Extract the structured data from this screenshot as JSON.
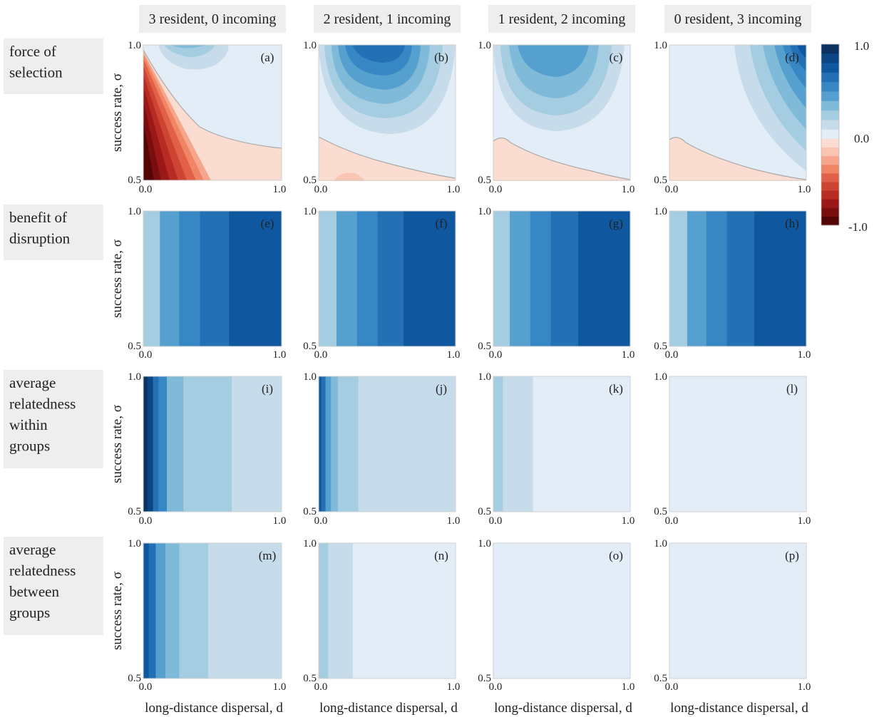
{
  "figure": {
    "columns": [
      "3 resident, 0 incoming",
      "2 resident, 1 incoming",
      "1 resident, 2 incoming",
      "0 resident, 3 incoming"
    ],
    "rows": [
      {
        "label": [
          "force of",
          "selection"
        ]
      },
      {
        "label": [
          "benefit of",
          "disruption"
        ]
      },
      {
        "label": [
          "average",
          "relatedness",
          "within",
          "groups"
        ]
      },
      {
        "label": [
          "average",
          "relatedness",
          "between",
          "groups"
        ]
      }
    ],
    "ylabel": "success rate, σ",
    "xlabel": "long-distance dispersal, d",
    "x_ticks": [
      "0.0",
      "1.0"
    ],
    "y_ticks": [
      "0.5",
      "1.0"
    ],
    "colorbar": {
      "ticks": [
        "1.0",
        "0.0",
        "-1.0"
      ]
    }
  },
  "colors": {
    "blues": [
      "#e3edf7",
      "#c7dceb",
      "#a5cde2",
      "#80bad9",
      "#56a0cf",
      "#3787c4",
      "#2370b4",
      "#0f58a0",
      "#0a4685",
      "#0b3260"
    ],
    "reds": [
      "#fbdcd0",
      "#f9c4b0",
      "#f6a68c",
      "#f08566",
      "#e06048",
      "#ce4433",
      "#b82b22",
      "#9b1818",
      "#7a0d0d",
      "#520606"
    ]
  },
  "chart_data": [
    {
      "panel": "(a)",
      "type": "heatmap",
      "row": "force of selection",
      "column": "3 resident, 0 incoming",
      "xlim": [
        0.0,
        1.0
      ],
      "ylim": [
        0.5,
        1.0
      ],
      "value_range": [
        -1.0,
        1.0
      ]
    },
    {
      "panel": "(b)",
      "type": "heatmap",
      "row": "force of selection",
      "column": "2 resident, 1 incoming",
      "xlim": [
        0.0,
        1.0
      ],
      "ylim": [
        0.5,
        1.0
      ],
      "value_range": [
        -1.0,
        1.0
      ]
    },
    {
      "panel": "(c)",
      "type": "heatmap",
      "row": "force of selection",
      "column": "1 resident, 2 incoming",
      "xlim": [
        0.0,
        1.0
      ],
      "ylim": [
        0.5,
        1.0
      ],
      "value_range": [
        -1.0,
        1.0
      ]
    },
    {
      "panel": "(d)",
      "type": "heatmap",
      "row": "force of selection",
      "column": "0 resident, 3 incoming",
      "xlim": [
        0.0,
        1.0
      ],
      "ylim": [
        0.5,
        1.0
      ],
      "value_range": [
        -1.0,
        1.0
      ]
    },
    {
      "panel": "(e)",
      "type": "heatmap",
      "row": "benefit of disruption",
      "column": "3 resident, 0 incoming",
      "xlim": [
        0.0,
        1.0
      ],
      "ylim": [
        0.5,
        1.0
      ],
      "bands": [
        {
          "x_from": 0.0,
          "x_to": 0.12,
          "level": 2
        },
        {
          "x_from": 0.12,
          "x_to": 0.26,
          "level": 4
        },
        {
          "x_from": 0.26,
          "x_to": 0.41,
          "level": 5
        },
        {
          "x_from": 0.41,
          "x_to": 0.62,
          "level": 6
        },
        {
          "x_from": 0.62,
          "x_to": 1.0,
          "level": 7
        }
      ]
    },
    {
      "panel": "(f)",
      "type": "heatmap",
      "row": "benefit of disruption",
      "column": "2 resident, 1 incoming",
      "xlim": [
        0.0,
        1.0
      ],
      "ylim": [
        0.5,
        1.0
      ],
      "bands": [
        {
          "x_from": 0.0,
          "x_to": 0.13,
          "level": 2
        },
        {
          "x_from": 0.13,
          "x_to": 0.28,
          "level": 4
        },
        {
          "x_from": 0.28,
          "x_to": 0.43,
          "level": 5
        },
        {
          "x_from": 0.43,
          "x_to": 0.62,
          "level": 6
        },
        {
          "x_from": 0.62,
          "x_to": 1.0,
          "level": 7
        }
      ]
    },
    {
      "panel": "(g)",
      "type": "heatmap",
      "row": "benefit of disruption",
      "column": "1 resident, 2 incoming",
      "xlim": [
        0.0,
        1.0
      ],
      "ylim": [
        0.5,
        1.0
      ],
      "bands": [
        {
          "x_from": 0.0,
          "x_to": 0.12,
          "level": 2
        },
        {
          "x_from": 0.12,
          "x_to": 0.27,
          "level": 4
        },
        {
          "x_from": 0.27,
          "x_to": 0.42,
          "level": 5
        },
        {
          "x_from": 0.42,
          "x_to": 0.62,
          "level": 6
        },
        {
          "x_from": 0.62,
          "x_to": 1.0,
          "level": 7
        }
      ]
    },
    {
      "panel": "(h)",
      "type": "heatmap",
      "row": "benefit of disruption",
      "column": "0 resident, 3 incoming",
      "xlim": [
        0.0,
        1.0
      ],
      "ylim": [
        0.5,
        1.0
      ],
      "bands": [
        {
          "x_from": 0.0,
          "x_to": 0.13,
          "level": 2
        },
        {
          "x_from": 0.13,
          "x_to": 0.27,
          "level": 4
        },
        {
          "x_from": 0.27,
          "x_to": 0.42,
          "level": 5
        },
        {
          "x_from": 0.42,
          "x_to": 0.62,
          "level": 6
        },
        {
          "x_from": 0.62,
          "x_to": 1.0,
          "level": 7
        }
      ]
    },
    {
      "panel": "(i)",
      "type": "heatmap",
      "row": "average relatedness within groups",
      "column": "3 resident, 0 incoming",
      "xlim": [
        0.0,
        1.0
      ],
      "ylim": [
        0.5,
        1.0
      ],
      "bands": [
        {
          "x_from": 0.0,
          "x_to": 0.03,
          "level": 9
        },
        {
          "x_from": 0.03,
          "x_to": 0.07,
          "level": 8
        },
        {
          "x_from": 0.07,
          "x_to": 0.11,
          "level": 6
        },
        {
          "x_from": 0.11,
          "x_to": 0.17,
          "level": 5
        },
        {
          "x_from": 0.17,
          "x_to": 0.29,
          "level": 3
        },
        {
          "x_from": 0.29,
          "x_to": 0.64,
          "level": 2
        },
        {
          "x_from": 0.64,
          "x_to": 1.0,
          "level": 1
        }
      ]
    },
    {
      "panel": "(j)",
      "type": "heatmap",
      "row": "average relatedness within groups",
      "column": "2 resident, 1 incoming",
      "xlim": [
        0.0,
        1.0
      ],
      "ylim": [
        0.5,
        1.0
      ],
      "bands": [
        {
          "x_from": 0.0,
          "x_to": 0.02,
          "level": 7
        },
        {
          "x_from": 0.02,
          "x_to": 0.05,
          "level": 6
        },
        {
          "x_from": 0.05,
          "x_to": 0.09,
          "level": 4
        },
        {
          "x_from": 0.09,
          "x_to": 0.14,
          "level": 3
        },
        {
          "x_from": 0.14,
          "x_to": 0.29,
          "level": 2
        },
        {
          "x_from": 0.29,
          "x_to": 1.0,
          "level": 1
        }
      ]
    },
    {
      "panel": "(k)",
      "type": "heatmap",
      "row": "average relatedness within groups",
      "column": "1 resident, 2 incoming",
      "xlim": [
        0.0,
        1.0
      ],
      "ylim": [
        0.5,
        1.0
      ],
      "bands": [
        {
          "x_from": 0.0,
          "x_to": 0.07,
          "level": 2
        },
        {
          "x_from": 0.07,
          "x_to": 0.29,
          "level": 1
        },
        {
          "x_from": 0.29,
          "x_to": 1.0,
          "level": 0
        }
      ]
    },
    {
      "panel": "(l)",
      "type": "heatmap",
      "row": "average relatedness within groups",
      "column": "0 resident, 3 incoming",
      "xlim": [
        0.0,
        1.0
      ],
      "ylim": [
        0.5,
        1.0
      ],
      "bands": [
        {
          "x_from": 0.0,
          "x_to": 1.0,
          "level": 0
        }
      ]
    },
    {
      "panel": "(m)",
      "type": "heatmap",
      "row": "average relatedness between groups",
      "column": "3 resident, 0 incoming",
      "xlim": [
        0.0,
        1.0
      ],
      "ylim": [
        0.5,
        1.0
      ],
      "bands": [
        {
          "x_from": 0.0,
          "x_to": 0.04,
          "level": 7
        },
        {
          "x_from": 0.04,
          "x_to": 0.09,
          "level": 6
        },
        {
          "x_from": 0.09,
          "x_to": 0.16,
          "level": 4
        },
        {
          "x_from": 0.16,
          "x_to": 0.26,
          "level": 3
        },
        {
          "x_from": 0.26,
          "x_to": 0.47,
          "level": 2
        },
        {
          "x_from": 0.47,
          "x_to": 1.0,
          "level": 1
        }
      ]
    },
    {
      "panel": "(n)",
      "type": "heatmap",
      "row": "average relatedness between groups",
      "column": "2 resident, 1 incoming",
      "xlim": [
        0.0,
        1.0
      ],
      "ylim": [
        0.5,
        1.0
      ],
      "bands": [
        {
          "x_from": 0.0,
          "x_to": 0.07,
          "level": 2
        },
        {
          "x_from": 0.07,
          "x_to": 0.25,
          "level": 1
        },
        {
          "x_from": 0.25,
          "x_to": 1.0,
          "level": 0
        }
      ]
    },
    {
      "panel": "(o)",
      "type": "heatmap",
      "row": "average relatedness between groups",
      "column": "1 resident, 2 incoming",
      "xlim": [
        0.0,
        1.0
      ],
      "ylim": [
        0.5,
        1.0
      ],
      "bands": [
        {
          "x_from": 0.0,
          "x_to": 1.0,
          "level": 0
        }
      ]
    },
    {
      "panel": "(p)",
      "type": "heatmap",
      "row": "average relatedness between groups",
      "column": "0 resident, 3 incoming",
      "xlim": [
        0.0,
        1.0
      ],
      "ylim": [
        0.5,
        1.0
      ],
      "bands": [
        {
          "x_from": 0.0,
          "x_to": 1.0,
          "level": 0
        }
      ]
    }
  ]
}
